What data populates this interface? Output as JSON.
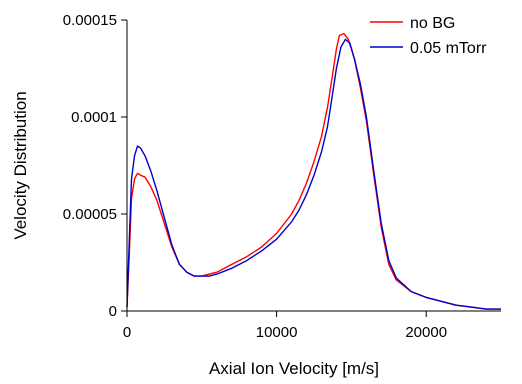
{
  "chart_data": {
    "type": "line",
    "title": "",
    "xlabel": "Axial Ion Velocity [m/s]",
    "ylabel": "Velocity Distribution",
    "xlim": [
      0,
      25000
    ],
    "ylim": [
      0,
      0.00015
    ],
    "x_ticks": [
      0,
      10000,
      20000
    ],
    "x_tick_labels": [
      "0",
      "10000",
      "20000"
    ],
    "y_ticks": [
      0,
      5e-05,
      0.0001,
      0.00015
    ],
    "y_tick_labels": [
      "0",
      "0.00005",
      "0.0001",
      "0.00015"
    ],
    "grid": false,
    "legend_position": "top-right",
    "series": [
      {
        "name": "no BG",
        "color": "#ff0000",
        "x": [
          0,
          150,
          300,
          500,
          700,
          900,
          1200,
          1600,
          2000,
          2500,
          3000,
          3500,
          4000,
          4500,
          5000,
          5500,
          6000,
          7000,
          8000,
          9000,
          10000,
          11000,
          11500,
          12000,
          12500,
          13000,
          13400,
          13700,
          14000,
          14200,
          14500,
          14800,
          15200,
          15600,
          16000,
          16500,
          17000,
          17500,
          18000,
          19000,
          20000,
          21000,
          22000,
          23000,
          24000,
          25000
        ],
        "values": [
          2e-06,
          2.8e-05,
          5.8e-05,
          6.8e-05,
          7.1e-05,
          7e-05,
          6.9e-05,
          6.4e-05,
          5.7e-05,
          4.5e-05,
          3.3e-05,
          2.4e-05,
          2e-05,
          1.8e-05,
          1.8e-05,
          1.9e-05,
          2e-05,
          2.4e-05,
          2.8e-05,
          3.3e-05,
          4e-05,
          5e-05,
          5.7e-05,
          6.6e-05,
          7.7e-05,
          9e-05,
          0.000105,
          0.00012,
          0.000135,
          0.000142,
          0.000143,
          0.00014,
          0.00013,
          0.000115,
          9.8e-05,
          7e-05,
          4.3e-05,
          2.4e-05,
          1.6e-05,
          1e-05,
          7e-06,
          5e-06,
          3e-06,
          2e-06,
          1e-06,
          1e-06
        ]
      },
      {
        "name": "0.05 mTorr",
        "color": "#0000cc",
        "x": [
          0,
          150,
          300,
          500,
          700,
          900,
          1200,
          1600,
          2000,
          2500,
          3000,
          3500,
          4000,
          4500,
          5000,
          5500,
          6000,
          7000,
          8000,
          9000,
          10000,
          11000,
          11500,
          12000,
          12500,
          13000,
          13400,
          13700,
          14000,
          14300,
          14600,
          14900,
          15200,
          15600,
          16000,
          16500,
          17000,
          17500,
          18000,
          19000,
          20000,
          21000,
          22000,
          23000,
          24000,
          25000
        ],
        "values": [
          2e-06,
          3.5e-05,
          6.8e-05,
          8e-05,
          8.5e-05,
          8.4e-05,
          8e-05,
          7.2e-05,
          6.2e-05,
          4.8e-05,
          3.4e-05,
          2.4e-05,
          2e-05,
          1.8e-05,
          1.8e-05,
          1.8e-05,
          1.9e-05,
          2.2e-05,
          2.6e-05,
          3.1e-05,
          3.7e-05,
          4.6e-05,
          5.2e-05,
          6e-05,
          7e-05,
          8.2e-05,
          9.5e-05,
          0.00011,
          0.000125,
          0.000136,
          0.00014,
          0.000138,
          0.00013,
          0.000117,
          0.0001,
          7.2e-05,
          4.5e-05,
          2.6e-05,
          1.7e-05,
          1e-05,
          7e-06,
          5e-06,
          3e-06,
          2e-06,
          1e-06,
          1e-06
        ]
      }
    ]
  }
}
